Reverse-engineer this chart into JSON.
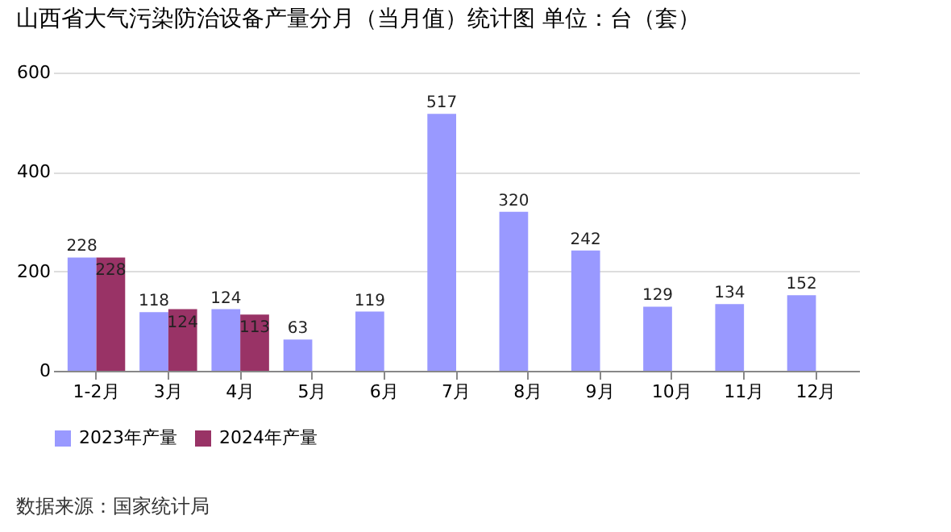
{
  "chart_data": {
    "type": "bar",
    "title": "山西省大气污染防治设备产量分月（当月值）统计图  单位：台（套）",
    "categories": [
      "1-2月",
      "3月",
      "4月",
      "5月",
      "6月",
      "7月",
      "8月",
      "9月",
      "10月",
      "11月",
      "12月"
    ],
    "series": [
      {
        "name": "2023年产量",
        "color": "#9999ff",
        "values": [
          228,
          118,
          124,
          63,
          119,
          517,
          320,
          242,
          129,
          134,
          152
        ]
      },
      {
        "name": "2024年产量",
        "color": "#993366",
        "values": [
          228,
          124,
          113,
          null,
          null,
          null,
          null,
          null,
          null,
          null,
          null
        ]
      }
    ],
    "ylim": [
      0,
      600
    ],
    "yticks": [
      0,
      200,
      400,
      600
    ],
    "grid": "y",
    "legend": "bottom",
    "data_labels": true,
    "annotations": [
      "数据来源：国家统计局"
    ]
  }
}
